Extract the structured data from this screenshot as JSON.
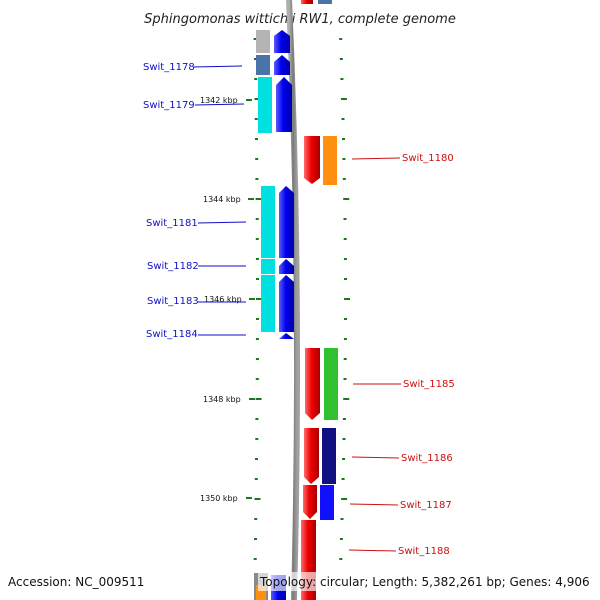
{
  "title": "Sphingomonas wittichii RW1, complete genome",
  "accession": "Accession: NC_009511",
  "topology": "Topology: circular; Length: 5,382,261 bp; Genes: 4,906",
  "colors": {
    "backbone": "#8a8a8a",
    "tick": "#1a7a1a",
    "left_label": "#1010c8",
    "right_label": "#cc1010"
  },
  "kbp_marks": [
    {
      "label": "1342 kbp"
    },
    {
      "label": "1344 kbp"
    },
    {
      "label": "1346 kbp"
    },
    {
      "label": "1348 kbp"
    },
    {
      "label": "1350 kbp"
    }
  ],
  "genes": [
    {
      "id": "Swit_1178",
      "strand": "minus",
      "color": "#4a74a8"
    },
    {
      "id": "Swit_1179",
      "strand": "minus",
      "color": "#00e0e0"
    },
    {
      "id": "Swit_1180",
      "strand": "plus",
      "color": "#ff9010"
    },
    {
      "id": "Swit_1181",
      "strand": "minus",
      "color": "#00e0e0"
    },
    {
      "id": "Swit_1182",
      "strand": "minus",
      "color": "#00e0e0"
    },
    {
      "id": "Swit_1183",
      "strand": "minus",
      "color": "#00e0e0"
    },
    {
      "id": "Swit_1184",
      "strand": "minus",
      "color": "#00e0e0"
    },
    {
      "id": "Swit_1185",
      "strand": "plus",
      "color": "#30c030"
    },
    {
      "id": "Swit_1186",
      "strand": "plus",
      "color": "#101080"
    },
    {
      "id": "Swit_1187",
      "strand": "plus",
      "color": "#1010ff"
    },
    {
      "id": "Swit_1188",
      "strand": "plus",
      "color": "#ff1010"
    }
  ]
}
